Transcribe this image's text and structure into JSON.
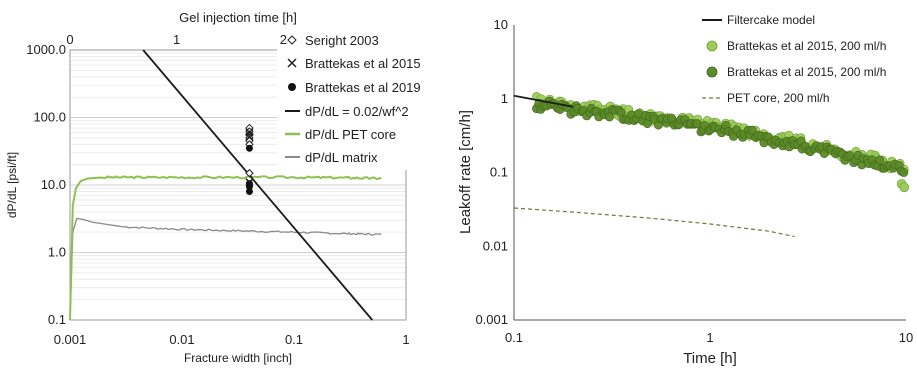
{
  "chart_data": [
    {
      "type": "line",
      "xlabel": "Fracture width [inch]",
      "x2label": "Gel injection time [h]",
      "ylabel": "dP/dL [psi/ft]",
      "xscale": "log",
      "yscale": "log",
      "xlim": [
        0.001,
        1
      ],
      "ylim": [
        0.1,
        1000
      ],
      "x2lim": [
        0,
        3.15
      ],
      "x_ticks": [
        {
          "v": 0.001,
          "label": "0.001"
        },
        {
          "v": 0.01,
          "label": "0.01"
        },
        {
          "v": 0.1,
          "label": "0.1"
        },
        {
          "v": 1,
          "label": "1"
        }
      ],
      "y_ticks": [
        {
          "v": 0.1,
          "label": "0.1"
        },
        {
          "v": 1,
          "label": "1.0"
        },
        {
          "v": 10,
          "label": "10.0"
        },
        {
          "v": 100,
          "label": "100.0"
        },
        {
          "v": 1000,
          "label": "1000.0"
        }
      ],
      "x2_ticks": [
        {
          "v": 0,
          "label": "0"
        },
        {
          "v": 1,
          "label": "1"
        },
        {
          "v": 2,
          "label": "2"
        }
      ],
      "grid": "horizontal-minor",
      "legend_position": "right",
      "colors": {
        "line": "#1a1a1a",
        "pet": "#8cc152",
        "matrix": "#8a8a8a"
      },
      "legend": {
        "seright": "Seright 2003",
        "brattekas2015": "Brattekas et al 2015",
        "brattekas2019": "Brattekas et al 2019",
        "model": "dP/dL = 0.02/wf^2",
        "pet": "dP/dL PET core",
        "matrix": "dP/dL matrix"
      },
      "series": {
        "seright": {
          "x": [
            0.04,
            0.04,
            0.04,
            0.04,
            0.04,
            0.04,
            0.04
          ],
          "y": [
            70,
            62,
            56,
            50,
            45,
            40,
            15
          ]
        },
        "brattekas2015": {
          "x": [
            0.04,
            0.04,
            0.04
          ],
          "y": [
            60,
            52,
            11
          ]
        },
        "brattekas2019": {
          "x": [
            0.04,
            0.04,
            0.04,
            0.04
          ],
          "y": [
            35,
            10.5,
            9.5,
            8
          ]
        },
        "model": {
          "x": [
            0.0045,
            0.5
          ],
          "y": [
            1000,
            0.09
          ]
        },
        "pet": {
          "x": [
            0.001,
            0.00106,
            0.00113,
            0.00125,
            0.00145,
            0.002,
            0.005,
            0.02,
            0.1,
            0.3,
            0.6
          ],
          "y": [
            0.1,
            5,
            9,
            11.5,
            12.5,
            13,
            13,
            13,
            13,
            12.8,
            12.5
          ]
        },
        "matrix": {
          "x": [
            0.001,
            0.00106,
            0.00115,
            0.0013,
            0.0016,
            0.003,
            0.01,
            0.03,
            0.1,
            0.3,
            0.6
          ],
          "y": [
            0.1,
            2,
            3.2,
            3.1,
            2.8,
            2.4,
            2.2,
            2.1,
            2.0,
            1.9,
            1.85
          ]
        }
      }
    },
    {
      "type": "scatter",
      "xlabel": "Time [h]",
      "ylabel": "Leakoff rate [cm/h]",
      "xscale": "log",
      "yscale": "log",
      "xlim": [
        0.1,
        10
      ],
      "ylim": [
        0.001,
        10
      ],
      "x_ticks": [
        {
          "v": 0.1,
          "label": "0.1"
        },
        {
          "v": 1,
          "label": "1"
        },
        {
          "v": 10,
          "label": "10"
        }
      ],
      "y_ticks": [
        {
          "v": 0.001,
          "label": "0.001"
        },
        {
          "v": 0.01,
          "label": "0.01"
        },
        {
          "v": 0.1,
          "label": "0.1"
        },
        {
          "v": 1,
          "label": "1"
        },
        {
          "v": 10,
          "label": "10"
        }
      ],
      "grid": "none",
      "legend_position": "top-right",
      "colors": {
        "model": "#1a1a1a",
        "light": "#9ccc5a",
        "dark": "#5c8a28",
        "pet": "#6b7a3c"
      },
      "legend": {
        "model": "Filtercake model",
        "light": "Brattekas et al 2015, 200 ml/h",
        "dark": "Brattekas et al 2015, 200 ml/h",
        "pet": "PET core, 200 ml/h"
      },
      "series": {
        "model": {
          "x": [
            0.1,
            0.2
          ],
          "y": [
            1.1,
            0.78
          ]
        },
        "pet": {
          "x": [
            0.1,
            0.2,
            0.5,
            1,
            2,
            2.7
          ],
          "y": [
            0.033,
            0.029,
            0.024,
            0.02,
            0.016,
            0.0135
          ]
        },
        "trend": {
          "x": [
            0.13,
            0.2,
            0.3,
            0.5,
            0.8,
            1.2,
            2,
            3,
            5,
            8,
            10
          ],
          "y": [
            0.9,
            0.75,
            0.68,
            0.55,
            0.45,
            0.4,
            0.3,
            0.24,
            0.17,
            0.13,
            0.11
          ]
        },
        "outliers": {
          "x": [
            9.5,
            9.8
          ],
          "y": [
            0.07,
            0.063
          ]
        }
      }
    }
  ]
}
